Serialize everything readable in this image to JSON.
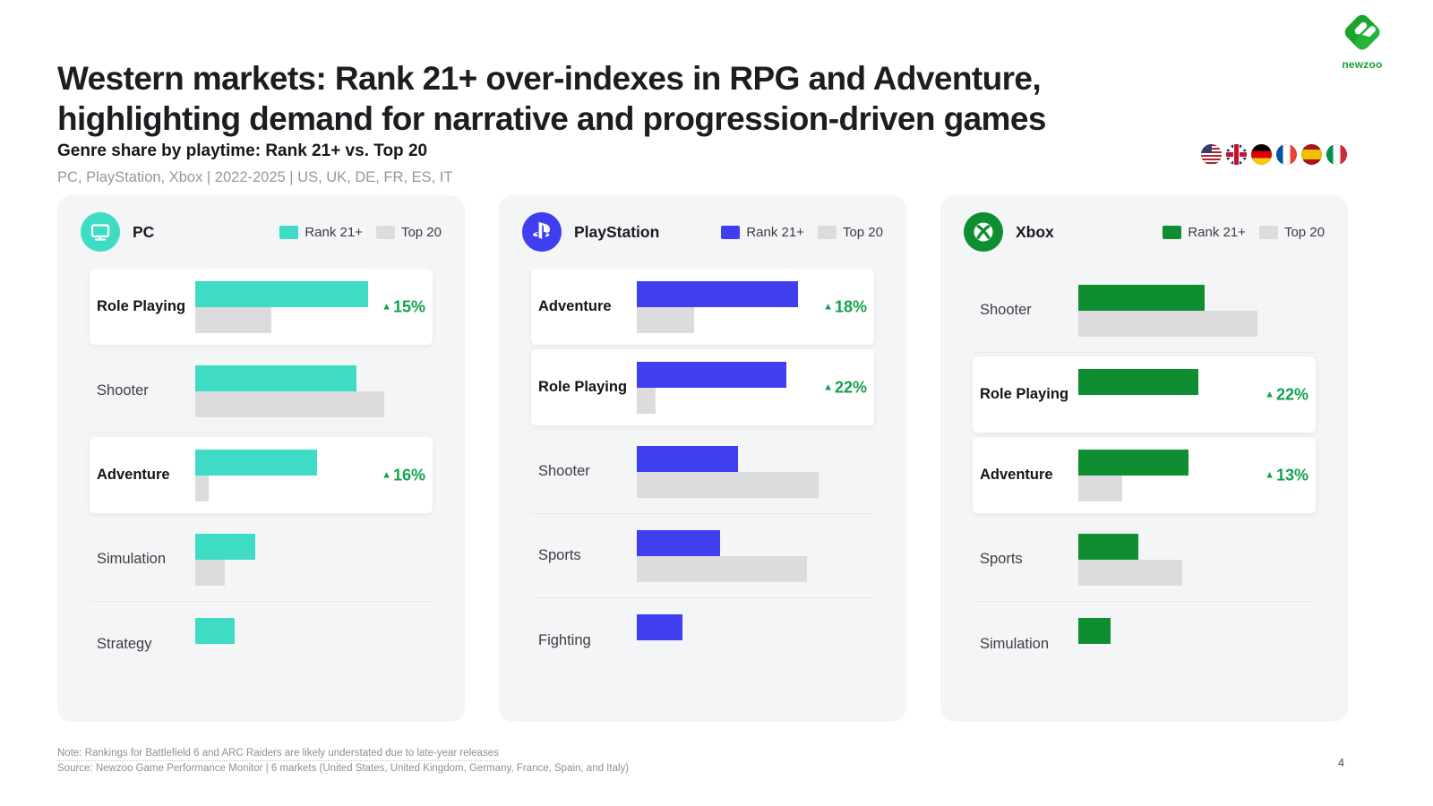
{
  "slide": {
    "title_line1": "Western markets: Rank 21+ over-indexes in RPG and Adventure,",
    "title_line2": "highlighting demand for narrative and progression-driven games",
    "section_title": "Genre share by playtime: Rank 21+ vs. Top 20",
    "section_subtitle": "PC, PlayStation, Xbox | 2022-2025 | US, UK, DE, FR, ES, IT",
    "note": "Note: Rankings for Battlefield 6 and ARC Raiders are likely understated due to late-year releases",
    "source": "Source: Newzoo Game Performance Monitor | 6 markets (United States, United Kingdom, Germany, France, Spain, and Italy)",
    "page_number": "4",
    "logo_text": "newzoo"
  },
  "legend": {
    "rank21": "Rank 21+",
    "top20": "Top 20"
  },
  "flags": [
    "us",
    "uk",
    "de",
    "fr",
    "es",
    "it"
  ],
  "colors": {
    "pc_teal": "#3EDCC5",
    "playstation_blue": "#3F3FF0",
    "xbox_green": "#0F8E31",
    "top20_gray": "#DCDCDE",
    "delta_green": "#12A24D",
    "panel_bg": "#F4F5F7",
    "logo_green": "#1CA32C"
  },
  "chart_data": [
    {
      "type": "bar",
      "platform": "PC",
      "accent": "#3EDCC5",
      "unit": "relative playtime share (% of bar track, no axis shown)",
      "series_names": [
        "Rank 21+",
        "Top 20"
      ],
      "rows": [
        {
          "genre": "Role Playing",
          "rank21": 75,
          "top20": 33,
          "delta": "15%",
          "highlighted": true
        },
        {
          "genre": "Shooter",
          "rank21": 70,
          "top20": 82,
          "delta": null,
          "highlighted": false
        },
        {
          "genre": "Adventure",
          "rank21": 53,
          "top20": 6,
          "delta": "16%",
          "highlighted": true
        },
        {
          "genre": "Simulation",
          "rank21": 26,
          "top20": 13,
          "delta": null,
          "highlighted": false
        },
        {
          "genre": "Strategy",
          "rank21": 17,
          "top20": 0,
          "delta": null,
          "highlighted": false
        }
      ]
    },
    {
      "type": "bar",
      "platform": "PlayStation",
      "accent": "#3F3FF0",
      "unit": "relative playtime share (% of bar track, no axis shown)",
      "series_names": [
        "Rank 21+",
        "Top 20"
      ],
      "rows": [
        {
          "genre": "Adventure",
          "rank21": 70,
          "top20": 25,
          "delta": "18%",
          "highlighted": true
        },
        {
          "genre": "Role Playing",
          "rank21": 65,
          "top20": 8,
          "delta": "22%",
          "highlighted": true
        },
        {
          "genre": "Shooter",
          "rank21": 44,
          "top20": 79,
          "delta": null,
          "highlighted": false
        },
        {
          "genre": "Sports",
          "rank21": 36,
          "top20": 74,
          "delta": null,
          "highlighted": false
        },
        {
          "genre": "Fighting",
          "rank21": 20,
          "top20": 0,
          "delta": null,
          "highlighted": false
        }
      ]
    },
    {
      "type": "bar",
      "platform": "Xbox",
      "accent": "#0F8E31",
      "unit": "relative playtime share (% of bar track, no axis shown)",
      "series_names": [
        "Rank 21+",
        "Top 20"
      ],
      "rows": [
        {
          "genre": "Shooter",
          "rank21": 55,
          "top20": 78,
          "delta": null,
          "highlighted": false
        },
        {
          "genre": "Role Playing",
          "rank21": 52,
          "top20": 0,
          "delta": "22%",
          "highlighted": true
        },
        {
          "genre": "Adventure",
          "rank21": 48,
          "top20": 19,
          "delta": "13%",
          "highlighted": true
        },
        {
          "genre": "Sports",
          "rank21": 26,
          "top20": 45,
          "delta": null,
          "highlighted": false
        },
        {
          "genre": "Simulation",
          "rank21": 14,
          "top20": 0,
          "delta": null,
          "highlighted": false
        }
      ]
    }
  ]
}
